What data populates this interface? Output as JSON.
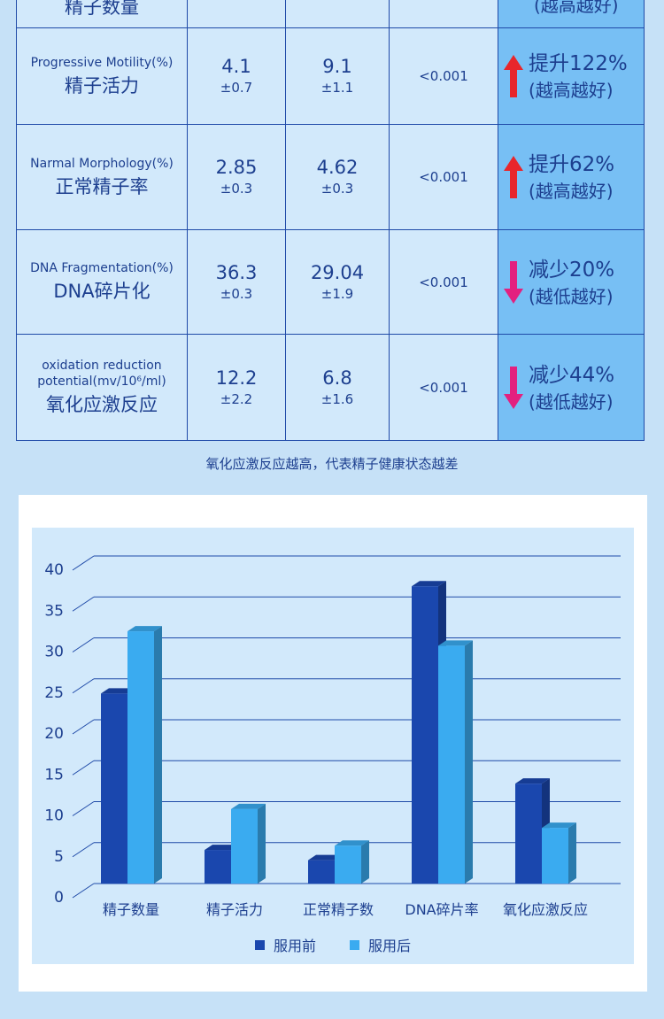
{
  "table": {
    "rows": [
      {
        "en": "",
        "cn": "精子数量",
        "before_mean": "",
        "before_sd": "",
        "after_mean": "",
        "after_sd": "",
        "p": "",
        "direction": "",
        "change": "",
        "note": "(越高越好)"
      },
      {
        "en": "Progressive Motility(%)",
        "cn": "精子活力",
        "before_mean": "4.1",
        "before_sd": "±0.7",
        "after_mean": "9.1",
        "after_sd": "±1.1",
        "p": "<0.001",
        "direction": "up",
        "change": "提升122%",
        "note": "(越高越好)"
      },
      {
        "en": "Narmal Morphology(%)",
        "cn": "正常精子率",
        "before_mean": "2.85",
        "before_sd": "±0.3",
        "after_mean": "4.62",
        "after_sd": "±0.3",
        "p": "<0.001",
        "direction": "up",
        "change": "提升62%",
        "note": "(越高越好)"
      },
      {
        "en": "DNA Fragmentation(%)",
        "cn": "DNA碎片化",
        "before_mean": "36.3",
        "before_sd": "±0.3",
        "after_mean": "29.04",
        "after_sd": "±1.9",
        "p": "<0.001",
        "direction": "down",
        "change": "减少20%",
        "note": "(越低越好)"
      },
      {
        "en": "oxidation reduction potential(mv/10⁶/ml)",
        "cn": "氧化应激反应",
        "before_mean": "12.2",
        "before_sd": "±2.2",
        "after_mean": "6.8",
        "after_sd": "±1.6",
        "p": "<0.001",
        "direction": "down",
        "change": "减少44%",
        "note": "(越低越好)"
      }
    ]
  },
  "note_text": "氧化应激反应越高，代表精子健康状态越差",
  "colors": {
    "up_arrow": "#e8262b",
    "down_arrow": "#e3207f",
    "before": "#1a47ae",
    "after": "#3aabf0",
    "grid": "#1f4aa8",
    "plot_bg": "#d2e9fb"
  },
  "chart_data": {
    "type": "bar",
    "title": "",
    "xlabel": "",
    "ylabel": "",
    "categories": [
      "精子数量",
      "精子活力",
      "正常精子数",
      "DNA碎片率",
      "氧化应激反应"
    ],
    "series": [
      {
        "name": "服用前",
        "values": [
          23.2,
          4.1,
          2.85,
          36.3,
          12.2
        ]
      },
      {
        "name": "服用后",
        "values": [
          30.8,
          9.1,
          4.62,
          29.04,
          6.8
        ]
      }
    ],
    "ylim": [
      0,
      40
    ],
    "yticks": [
      "0",
      "5",
      "10",
      "15",
      "20",
      "25",
      "30",
      "35",
      "40"
    ],
    "grid": true,
    "legend": "bottom"
  }
}
